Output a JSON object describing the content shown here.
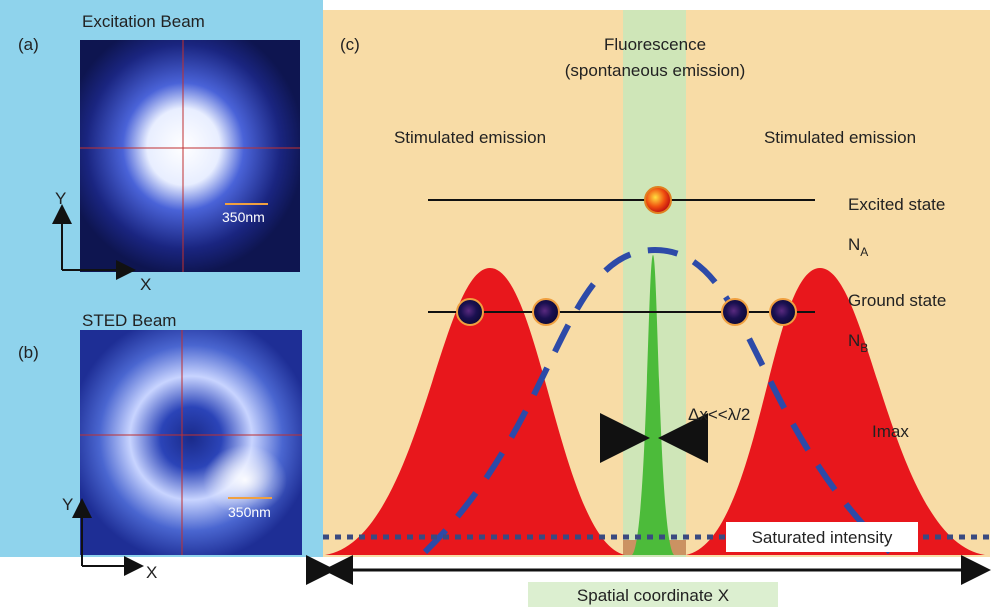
{
  "panel_a": {
    "label": "(a)",
    "title": "Excitation Beam",
    "scale_bar": "350nm",
    "y_axis": "Y",
    "x_axis": "X"
  },
  "panel_b": {
    "label": "(b)",
    "title": "STED Beam",
    "scale_bar": "350nm",
    "y_axis": "Y",
    "x_axis": "X"
  },
  "panel_c": {
    "label": "(c)",
    "fluorescence": {
      "line1": "Fluorescence",
      "line2": "(spontaneous emission)"
    },
    "stimulated_left": "Stimulated emission",
    "stimulated_right": "Stimulated emission",
    "excited_state": "Excited state",
    "excited_symbol": {
      "main": "N",
      "sub": "A"
    },
    "ground_state": "Ground state",
    "ground_symbol": {
      "main": "N",
      "sub": "B"
    },
    "resolution": "Δx<<λ/2",
    "imax": "Imax",
    "saturated": "Saturated intensity",
    "x_axis": "Spatial coordinate X"
  }
}
